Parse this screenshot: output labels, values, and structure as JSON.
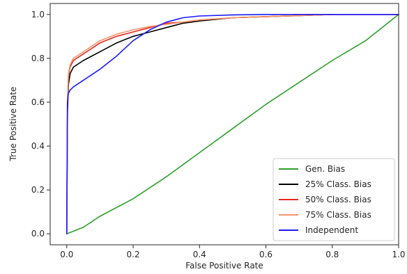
{
  "chart_data": {
    "type": "line",
    "xlabel": "False Positive Rate",
    "ylabel": "True Positive Rate",
    "xlim": [
      -0.05,
      1.0
    ],
    "ylim": [
      -0.05,
      1.05
    ],
    "xticks": [
      "0.0",
      "0.2",
      "0.4",
      "0.6",
      "0.8",
      "1.0"
    ],
    "yticks": [
      "0.0",
      "0.2",
      "0.4",
      "0.6",
      "0.8",
      "1.0"
    ],
    "grid": false,
    "legend_position": "lower-right",
    "series": [
      {
        "name": "Gen. Bias",
        "color": "#2ca02c",
        "x": [
          0.0,
          0.05,
          0.1,
          0.2,
          0.3,
          0.4,
          0.5,
          0.6,
          0.7,
          0.8,
          0.9,
          0.95,
          1.0
        ],
        "y": [
          0.0,
          0.03,
          0.08,
          0.16,
          0.26,
          0.37,
          0.48,
          0.59,
          0.69,
          0.79,
          0.88,
          0.94,
          1.0
        ]
      },
      {
        "name": "25% Class. Bias",
        "color": "#000000",
        "x": [
          0.0,
          0.002,
          0.005,
          0.01,
          0.02,
          0.05,
          0.1,
          0.15,
          0.2,
          0.25,
          0.3,
          0.35,
          0.4,
          0.5,
          0.6,
          0.7,
          0.8,
          0.9,
          1.0
        ],
        "y": [
          0.0,
          0.55,
          0.68,
          0.73,
          0.76,
          0.79,
          0.83,
          0.87,
          0.9,
          0.92,
          0.94,
          0.96,
          0.97,
          0.985,
          0.99,
          0.995,
          1.0,
          1.0,
          1.0
        ]
      },
      {
        "name": "50% Class. Bias",
        "color": "#e8281e",
        "x": [
          0.0,
          0.002,
          0.005,
          0.01,
          0.02,
          0.05,
          0.1,
          0.15,
          0.2,
          0.25,
          0.3,
          0.35,
          0.4,
          0.5,
          0.6,
          0.7,
          0.8,
          0.9,
          1.0
        ],
        "y": [
          0.0,
          0.6,
          0.72,
          0.76,
          0.79,
          0.82,
          0.87,
          0.9,
          0.92,
          0.94,
          0.96,
          0.965,
          0.975,
          0.985,
          0.99,
          0.995,
          1.0,
          1.0,
          1.0
        ]
      },
      {
        "name": "75% Class. Bias",
        "color": "#f5956a",
        "x": [
          0.0,
          0.002,
          0.005,
          0.01,
          0.02,
          0.05,
          0.1,
          0.15,
          0.2,
          0.25,
          0.3,
          0.35,
          0.4,
          0.5,
          0.6,
          0.7,
          0.8,
          0.9,
          1.0
        ],
        "y": [
          0.0,
          0.62,
          0.73,
          0.77,
          0.8,
          0.83,
          0.88,
          0.91,
          0.93,
          0.945,
          0.955,
          0.965,
          0.975,
          0.985,
          0.99,
          0.995,
          1.0,
          1.0,
          1.0
        ]
      },
      {
        "name": "Independent",
        "color": "#1a1aff",
        "x": [
          0.0,
          0.002,
          0.005,
          0.01,
          0.02,
          0.05,
          0.1,
          0.15,
          0.2,
          0.25,
          0.3,
          0.35,
          0.4,
          0.5,
          0.6,
          0.7,
          0.8,
          0.9,
          1.0
        ],
        "y": [
          0.0,
          0.6,
          0.64,
          0.655,
          0.67,
          0.7,
          0.75,
          0.81,
          0.88,
          0.93,
          0.965,
          0.985,
          0.993,
          0.998,
          1.0,
          1.0,
          1.0,
          1.0,
          1.0
        ]
      }
    ]
  }
}
